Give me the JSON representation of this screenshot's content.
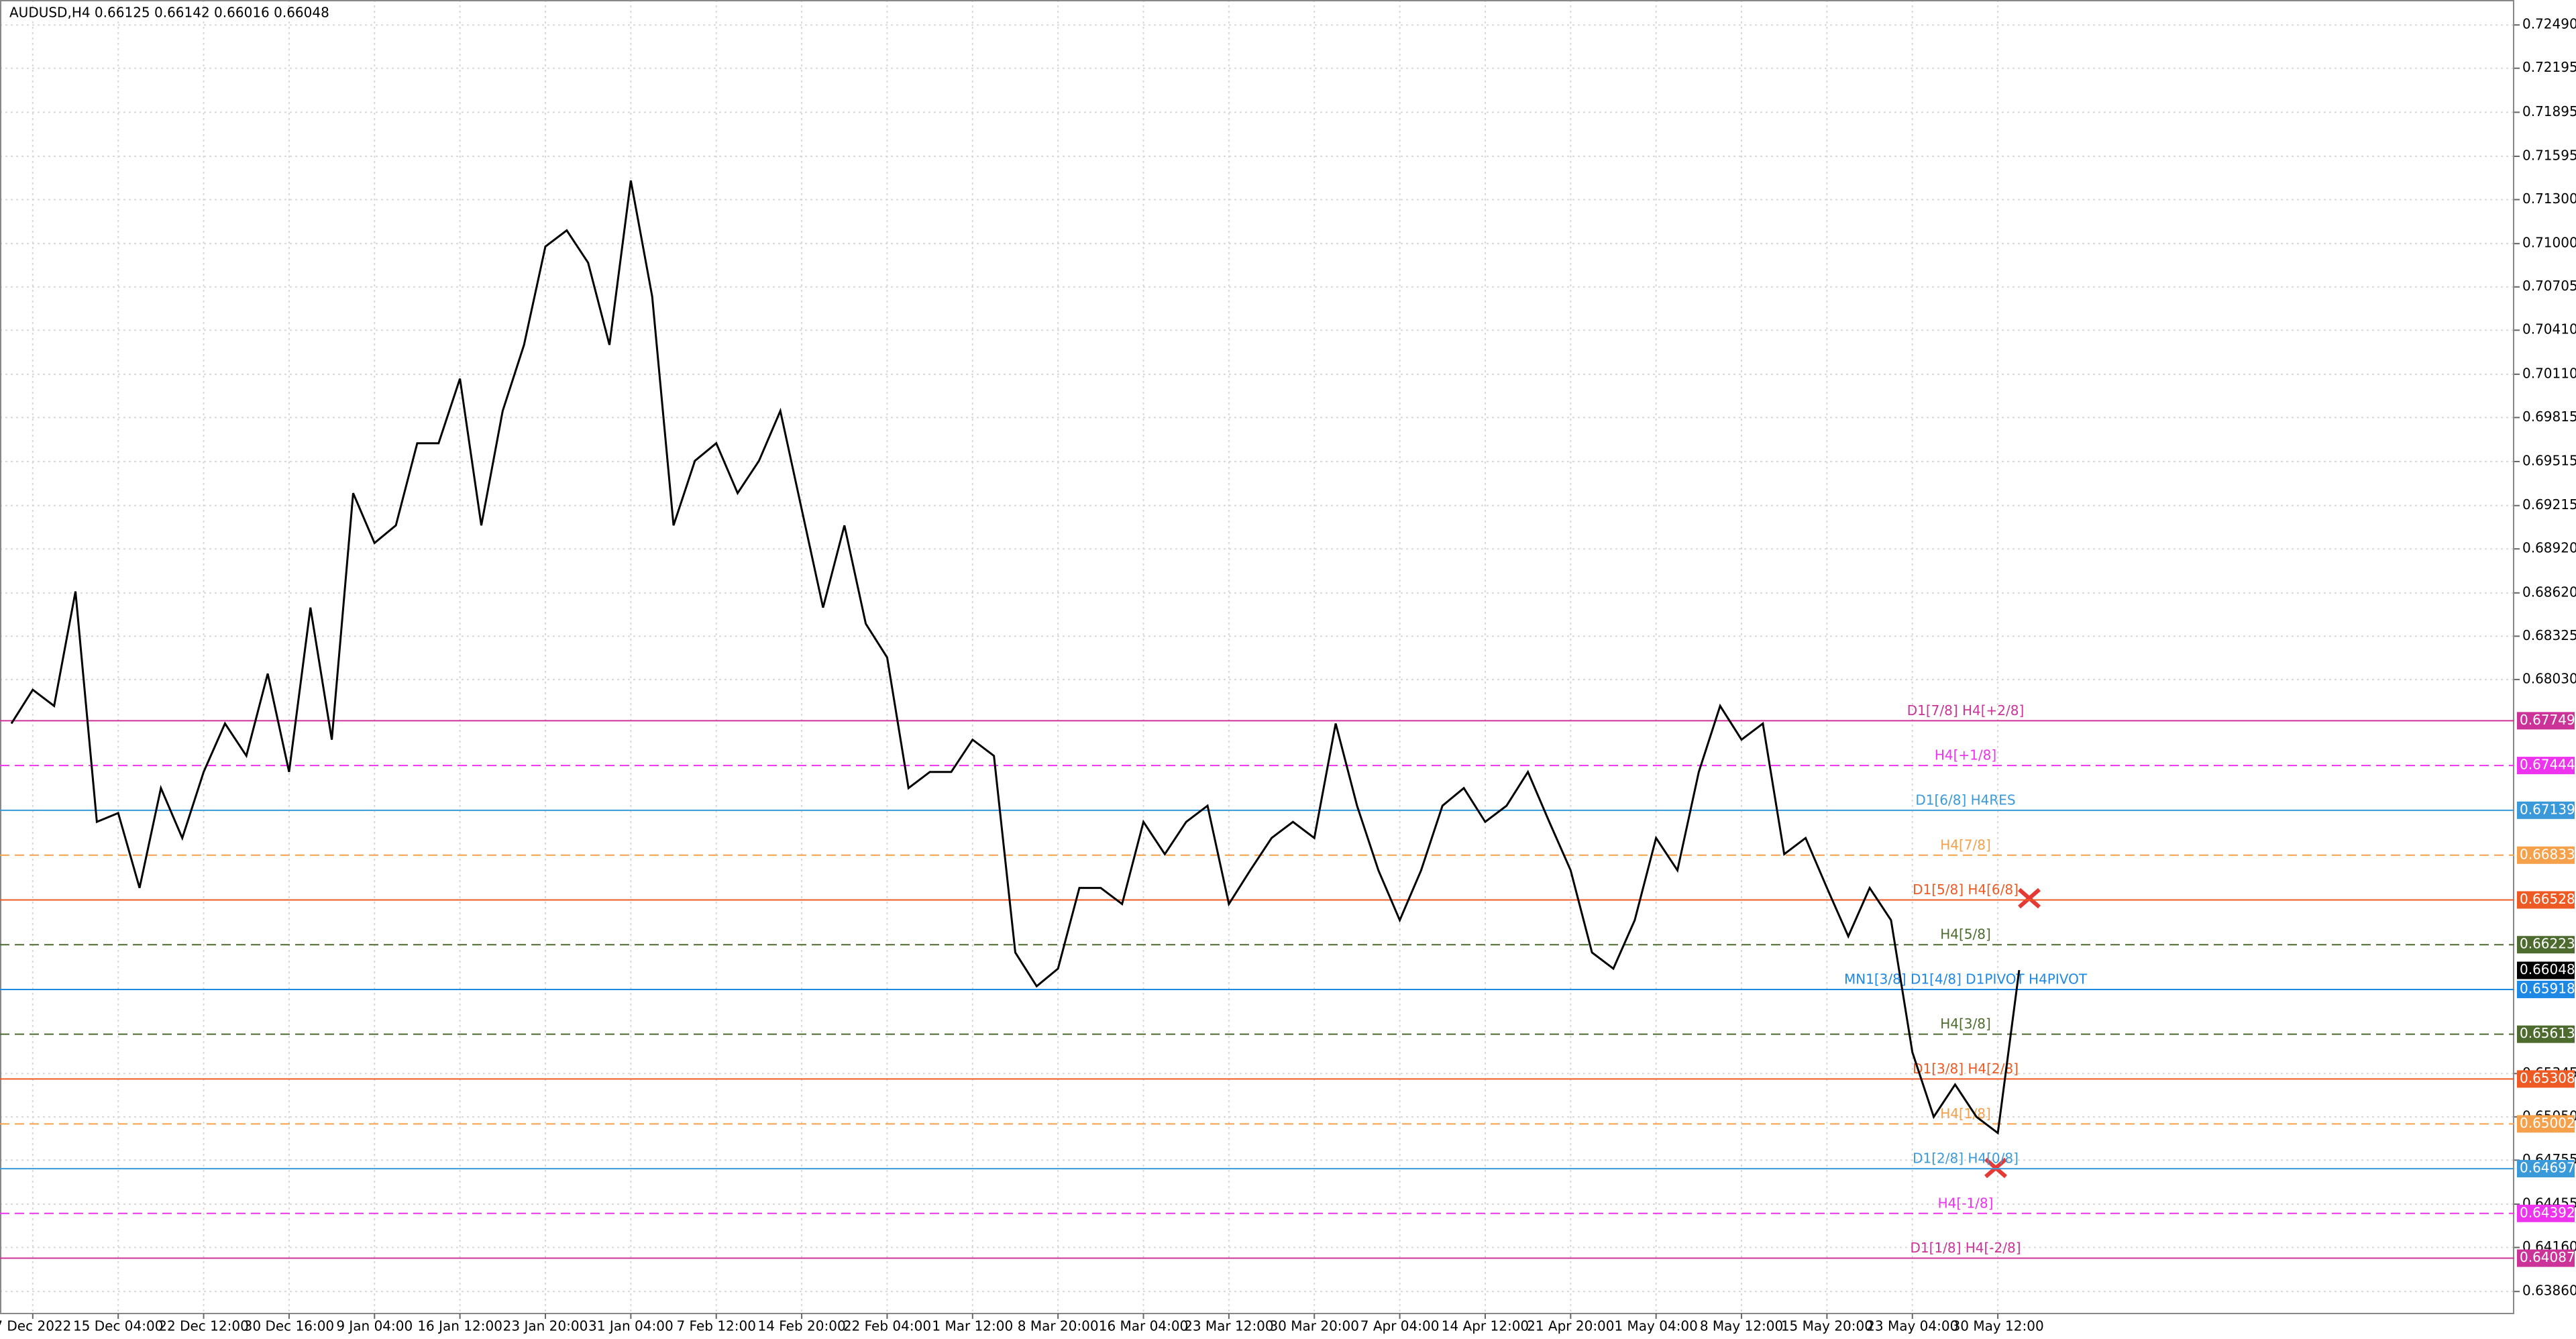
{
  "header": {
    "symbol_info": "AUDUSD,H4  0.66125 0.66142 0.66016 0.66048"
  },
  "chart_data": {
    "type": "line",
    "color": "#000000",
    "categories": [
      null,
      "7 Dec 2022",
      null,
      null,
      null,
      "15 Dec 04:00",
      null,
      null,
      null,
      "22 Dec 12:00",
      null,
      null,
      null,
      "30 Dec 16:00",
      null,
      null,
      null,
      "9 Jan 04:00",
      null,
      null,
      null,
      "16 Jan 12:00",
      null,
      null,
      null,
      "23 Jan 20:00",
      null,
      null,
      null,
      "31 Jan 04:00",
      null,
      null,
      null,
      "7 Feb 12:00",
      null,
      null,
      null,
      "14 Feb 20:00",
      null,
      null,
      null,
      "22 Feb 04:00",
      null,
      null,
      null,
      "1 Mar 12:00",
      null,
      null,
      null,
      "8 Mar 20:00",
      null,
      null,
      null,
      "16 Mar 04:00",
      null,
      null,
      null,
      "23 Mar 12:00",
      null,
      null,
      null,
      "30 Mar 20:00",
      null,
      null,
      null,
      "7 Apr 04:00",
      null,
      null,
      null,
      "14 Apr 12:00",
      null,
      null,
      null,
      "21 Apr 20:00",
      null,
      null,
      null,
      "1 May 04:00",
      null,
      null,
      null,
      "8 May 12:00",
      null,
      null,
      null,
      "15 May 20:00",
      null,
      null,
      null,
      "23 May 04:00",
      null,
      null,
      null,
      "30 May 12:00",
      null
    ],
    "values": [
      0.6773,
      0.6796,
      0.6785,
      0.6863,
      0.6706,
      0.6712,
      0.6661,
      0.6729,
      0.6695,
      0.674,
      0.6773,
      0.6751,
      0.6807,
      0.674,
      0.6852,
      0.6762,
      0.693,
      0.6896,
      0.6908,
      0.6964,
      0.6964,
      0.7008,
      0.6908,
      0.6986,
      0.7031,
      0.7098,
      0.7109,
      0.7087,
      0.7031,
      0.7143,
      0.7064,
      0.6908,
      0.6952,
      0.6964,
      0.693,
      0.6952,
      0.6986,
      0.6919,
      0.6852,
      0.6908,
      0.6841,
      0.6818,
      0.6729,
      0.674,
      0.674,
      0.6762,
      0.6751,
      0.6617,
      0.6594,
      0.6606,
      0.6661,
      0.6661,
      0.665,
      0.6706,
      0.6684,
      0.6706,
      0.6717,
      0.665,
      0.6673,
      0.6695,
      0.6706,
      0.6695,
      0.6773,
      0.6717,
      0.6673,
      0.6639,
      0.6673,
      0.6717,
      0.6729,
      0.6706,
      0.6717,
      0.674,
      0.6706,
      0.6673,
      0.6617,
      0.6606,
      0.6639,
      0.6695,
      0.6673,
      0.674,
      0.6785,
      0.6762,
      0.6773,
      0.6684,
      0.6695,
      0.6661,
      0.6628,
      0.6661,
      0.6639,
      0.6549,
      0.6505,
      0.6527,
      0.6505,
      0.6494,
      0.6605
    ],
    "ylim": [
      0.6371,
      0.7266
    ],
    "yticks": [
      {
        "value": 0.7249,
        "label": "0.72490"
      },
      0.72195,
      0.71895,
      0.71595,
      {
        "value": 0.713,
        "label": "0.71300"
      },
      {
        "value": 0.71,
        "label": "0.71000"
      },
      0.70705,
      {
        "value": 0.7041,
        "label": "0.70410"
      },
      {
        "value": 0.7011,
        "label": "0.70110"
      },
      0.69815,
      0.69515,
      0.69215,
      {
        "value": 0.6892,
        "label": "0.68920"
      },
      {
        "value": 0.6862,
        "label": "0.68620"
      },
      0.68325,
      {
        "value": 0.6803,
        "label": "0.68030"
      },
      0.65345,
      {
        "value": 0.6505,
        "label": "0.65050"
      },
      0.64755,
      0.64455,
      {
        "value": 0.6416,
        "label": "0.64160"
      },
      {
        "value": 0.6386,
        "label": "0.63860"
      }
    ],
    "grid": true,
    "last_price": 0.66048,
    "levels": [
      {
        "label": "D1[7/8] H4[+2/8]",
        "value": 0.67749,
        "color": "#cc3399",
        "dashed": false
      },
      {
        "label": "H4[+1/8]",
        "value": 0.67444,
        "color": "#ee33ee",
        "dashed": true
      },
      {
        "label": "D1[6/8] H4RES",
        "value": 0.67139,
        "color": "#3a9ad9",
        "dashed": false
      },
      {
        "label": "H4[7/8]",
        "value": 0.66833,
        "color": "#f5a04a",
        "dashed": true
      },
      {
        "label": "D1[5/8] H4[6/8]",
        "value": 0.66528,
        "color": "#ee5a24",
        "dashed": false
      },
      {
        "label": "H4[5/8]",
        "value": 0.66223,
        "color": "#4d6b2e",
        "dashed": true
      },
      {
        "label": "MN1[3/8] D1[4/8] D1PIVOT H4PIVOT",
        "value": 0.65918,
        "color": "#1e88e5",
        "dashed": false
      },
      {
        "label": "H4[3/8]",
        "value": 0.65613,
        "color": "#4d6b2e",
        "dashed": true
      },
      {
        "label": "D1[3/8] H4[2/8]",
        "value": 0.65308,
        "color": "#ee5a24",
        "dashed": false
      },
      {
        "label": "H4[1/8]",
        "value": 0.65002,
        "color": "#f5a04a",
        "dashed": true
      },
      {
        "label": "D1[2/8] H4[0/8]",
        "value": 0.64697,
        "color": "#3a9ad9",
        "dashed": false
      },
      {
        "label": "H4[-1/8]",
        "value": 0.64392,
        "color": "#ee33ee",
        "dashed": true
      },
      {
        "label": "D1[1/8] H4[-2/8]",
        "value": 0.64087,
        "color": "#cc3399",
        "dashed": false
      }
    ]
  }
}
